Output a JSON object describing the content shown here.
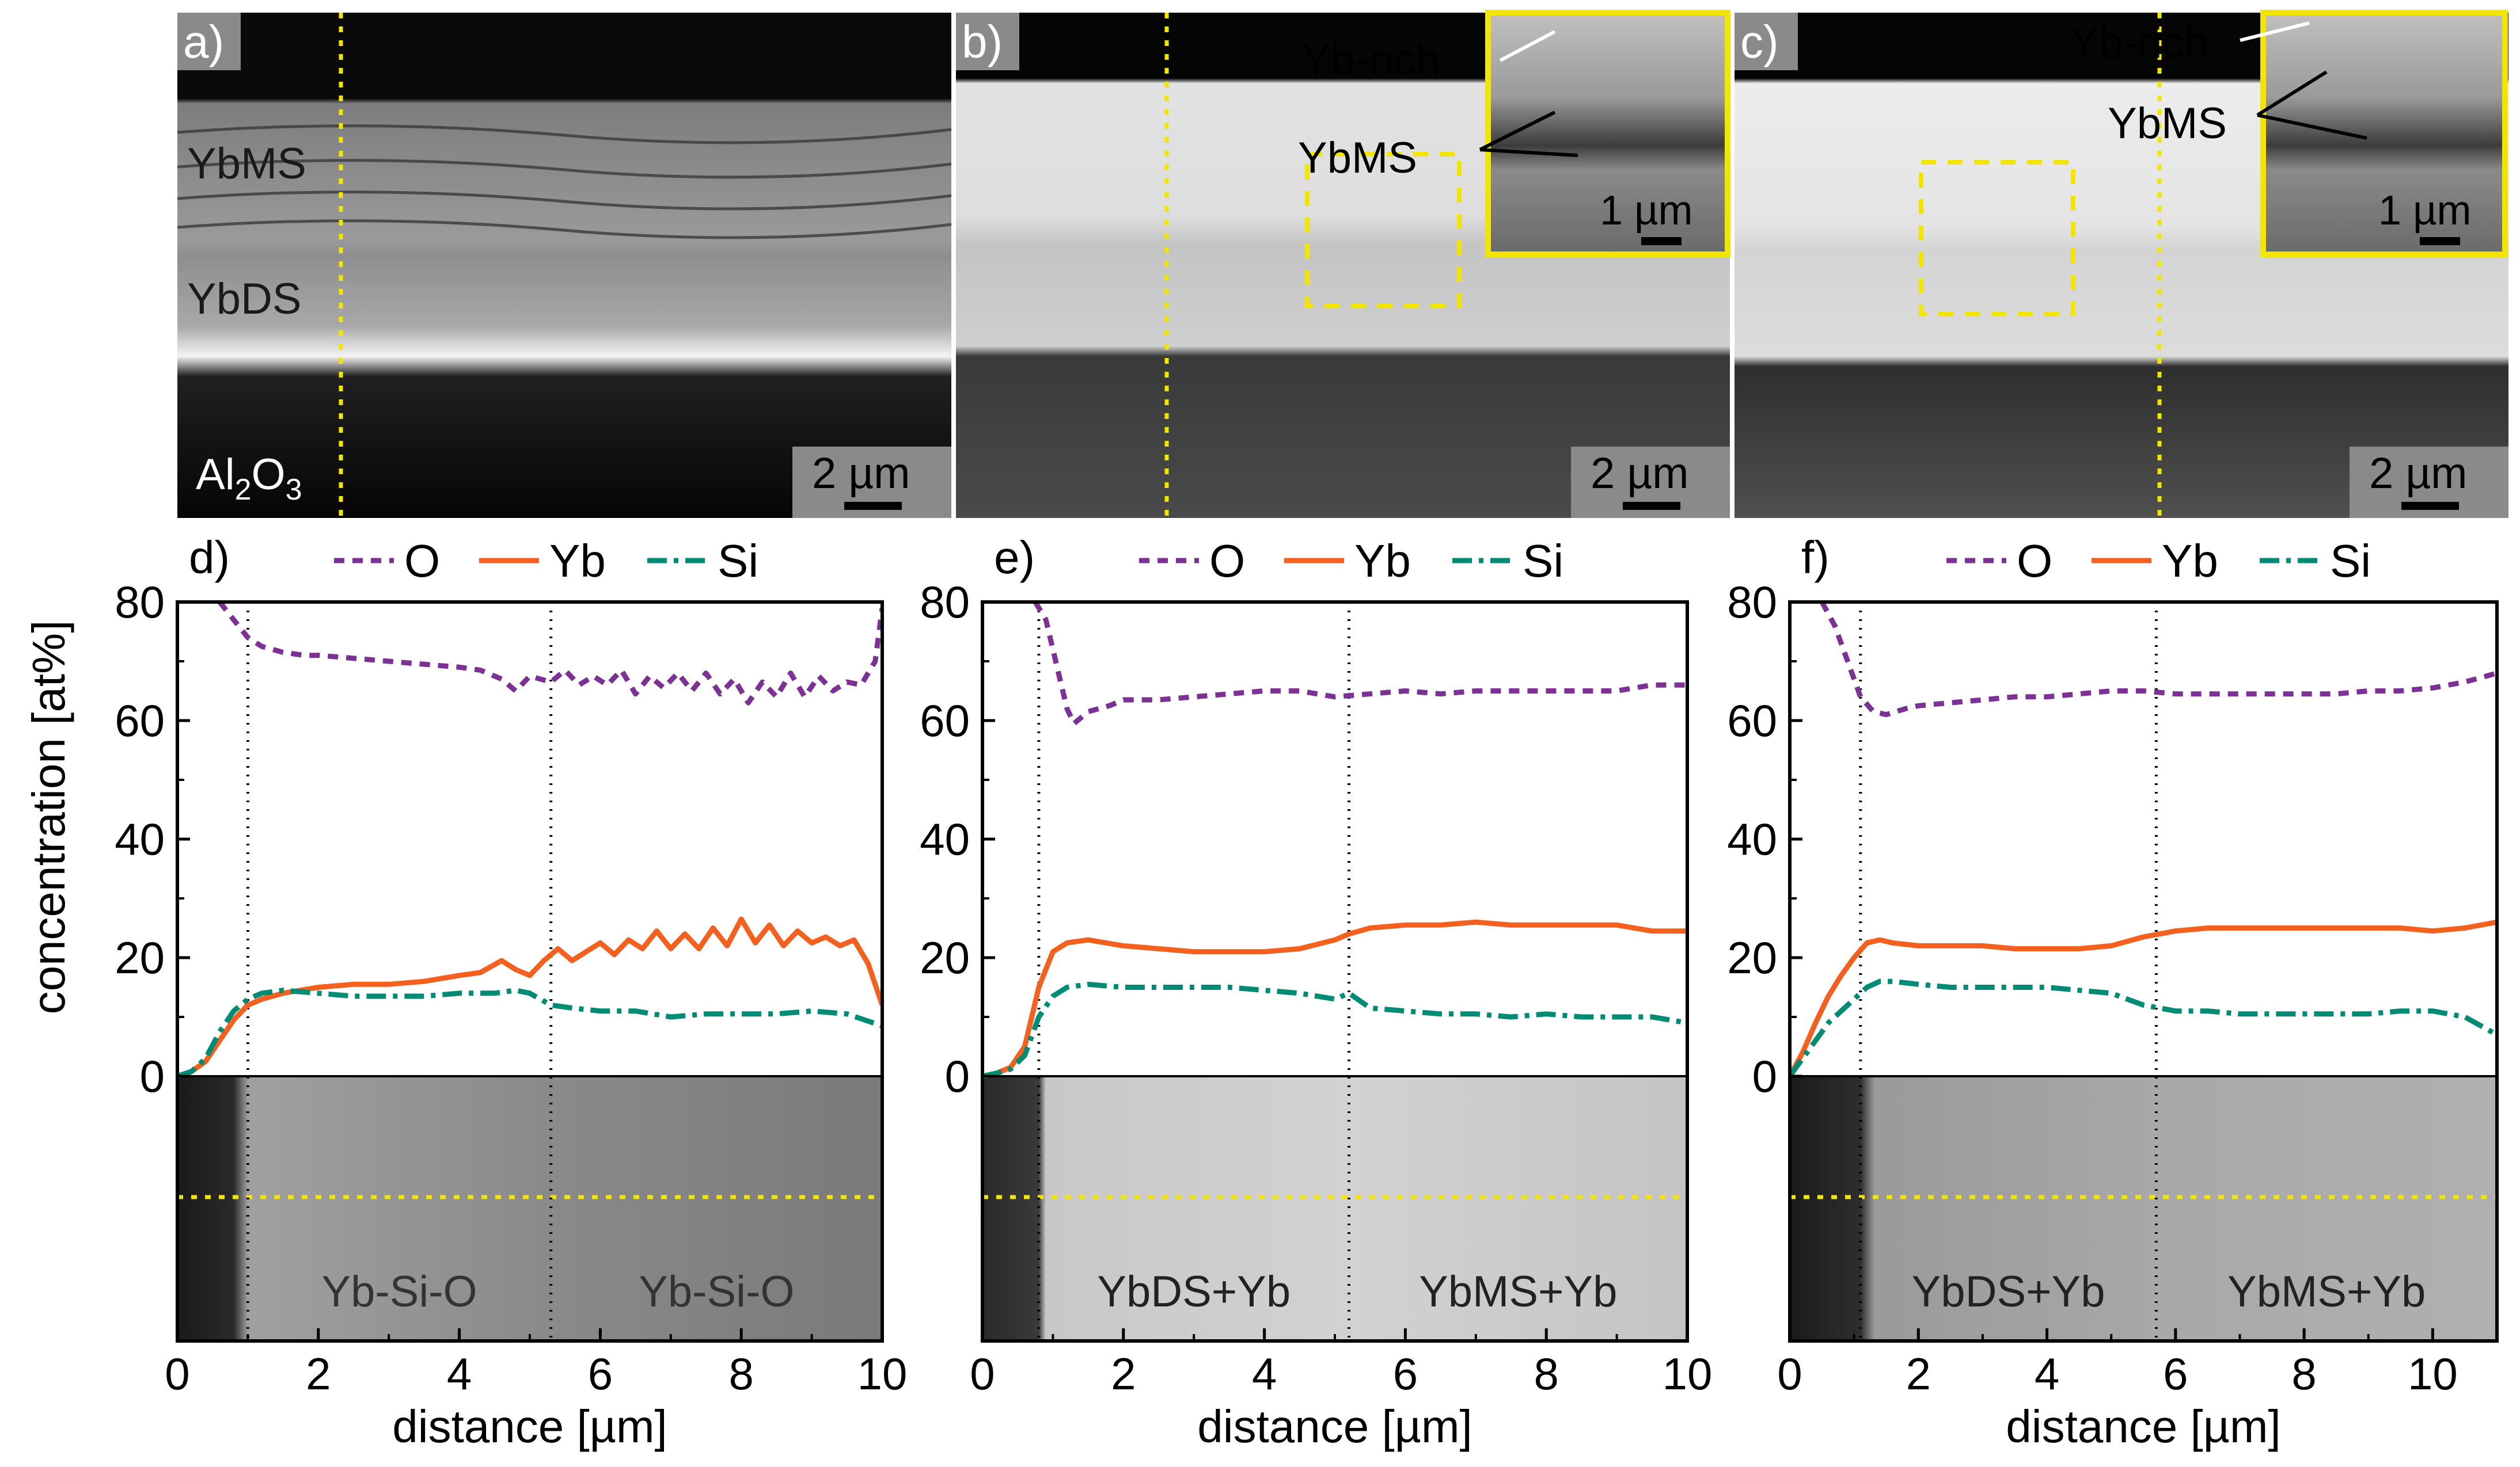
{
  "chart_data": [
    {
      "type": "line",
      "panel": "d)",
      "micrograph_labels": [
        "Yb-Si-O",
        "Yb-Si-O"
      ],
      "xlabel": "distance [µm]",
      "ylabel": "concentration [at%]",
      "xlim": [
        0,
        10
      ],
      "ylim": [
        0,
        80
      ],
      "xticks": [
        0,
        2,
        4,
        6,
        8,
        10
      ],
      "yticks": [
        0,
        20,
        40,
        60,
        80
      ],
      "boundaries": [
        1.0,
        5.3
      ],
      "series": [
        {
          "name": "O",
          "x": [
            0.6,
            0.8,
            1.0,
            1.2,
            1.5,
            1.8,
            2.0,
            2.5,
            3.0,
            3.5,
            4.0,
            4.3,
            4.6,
            4.8,
            5.0,
            5.3,
            5.5,
            5.7,
            5.9,
            6.1,
            6.3,
            6.5,
            6.7,
            6.9,
            7.1,
            7.3,
            7.5,
            7.7,
            7.9,
            8.1,
            8.3,
            8.5,
            8.7,
            8.9,
            9.1,
            9.3,
            9.5,
            9.7,
            9.9,
            10.0
          ],
          "values": [
            80,
            77,
            74,
            72.5,
            71.5,
            71,
            71,
            70.5,
            70,
            69.5,
            69,
            68.5,
            67,
            65,
            67.5,
            66.5,
            68.5,
            66,
            67.5,
            66,
            68.5,
            64.5,
            67.5,
            65.5,
            68,
            65,
            68,
            64.5,
            67,
            63,
            66.5,
            64,
            68,
            64,
            67.5,
            65,
            66.5,
            66,
            70,
            79
          ]
        },
        {
          "name": "Yb",
          "x": [
            0.0,
            0.2,
            0.4,
            0.6,
            0.8,
            1.0,
            1.2,
            1.5,
            2.0,
            2.5,
            3.0,
            3.5,
            4.0,
            4.3,
            4.6,
            4.8,
            5.0,
            5.2,
            5.4,
            5.6,
            5.8,
            6.0,
            6.2,
            6.4,
            6.6,
            6.8,
            7.0,
            7.2,
            7.4,
            7.6,
            7.8,
            8.0,
            8.2,
            8.4,
            8.6,
            8.8,
            9.0,
            9.2,
            9.4,
            9.6,
            9.8,
            10.0
          ],
          "values": [
            0,
            0.8,
            2.5,
            6,
            9.5,
            12,
            13,
            14,
            15,
            15.5,
            15.5,
            16,
            17,
            17.5,
            19.5,
            18,
            17,
            19.5,
            21.5,
            19.5,
            21,
            22.5,
            20.5,
            23,
            21.5,
            24.5,
            21.5,
            24,
            21.5,
            25,
            22,
            26.5,
            22.5,
            25.5,
            22,
            24.5,
            22.5,
            23.5,
            22,
            23,
            19,
            12
          ]
        },
        {
          "name": "Si",
          "x": [
            0.0,
            0.2,
            0.4,
            0.6,
            0.8,
            1.0,
            1.2,
            1.5,
            2.0,
            2.5,
            3.0,
            3.5,
            4.0,
            4.5,
            4.8,
            5.0,
            5.3,
            5.6,
            6.0,
            6.5,
            7.0,
            7.5,
            8.0,
            8.5,
            9.0,
            9.5,
            10.0
          ],
          "values": [
            0,
            0.8,
            3,
            7.5,
            11,
            13,
            14,
            14.5,
            14,
            13.5,
            13.5,
            13.5,
            14,
            14,
            14.5,
            14,
            12,
            11.5,
            11,
            11,
            10,
            10.5,
            10.5,
            10.5,
            11,
            10.5,
            8.5
          ]
        }
      ]
    },
    {
      "type": "line",
      "panel": "e)",
      "micrograph_labels": [
        "YbDS+Yb",
        "YbMS+Yb"
      ],
      "xlabel": "distance [µm]",
      "ylabel": "",
      "xlim": [
        0,
        10
      ],
      "ylim": [
        0,
        80
      ],
      "xticks": [
        0,
        2,
        4,
        6,
        8,
        10
      ],
      "yticks": [
        0,
        20,
        40,
        60,
        80
      ],
      "boundaries": [
        0.8,
        5.2
      ],
      "series": [
        {
          "name": "O",
          "x": [
            0.75,
            0.9,
            1.0,
            1.1,
            1.2,
            1.3,
            1.5,
            1.8,
            2.0,
            2.5,
            3.0,
            3.5,
            4.0,
            4.5,
            5.0,
            5.5,
            6.0,
            6.5,
            7.0,
            7.5,
            8.0,
            8.5,
            9.0,
            9.5,
            10.0
          ],
          "values": [
            80,
            77,
            72,
            67,
            62,
            59.5,
            61.5,
            62.5,
            63.5,
            63.5,
            64,
            64.5,
            65,
            65,
            64,
            64.5,
            65,
            64.5,
            65,
            65,
            65,
            65,
            65,
            66,
            66
          ]
        },
        {
          "name": "Yb",
          "x": [
            0.0,
            0.2,
            0.4,
            0.6,
            0.8,
            1.0,
            1.2,
            1.5,
            2.0,
            2.5,
            3.0,
            3.5,
            4.0,
            4.5,
            5.0,
            5.2,
            5.5,
            6.0,
            6.5,
            7.0,
            7.5,
            8.0,
            8.5,
            9.0,
            9.5,
            10.0
          ],
          "values": [
            0,
            0.5,
            1.5,
            5,
            15,
            21,
            22.5,
            23,
            22,
            21.5,
            21,
            21,
            21,
            21.5,
            23,
            24,
            25,
            25.5,
            25.5,
            26,
            25.5,
            25.5,
            25.5,
            25.5,
            24.5,
            24.5
          ]
        },
        {
          "name": "Si",
          "x": [
            0.0,
            0.2,
            0.4,
            0.6,
            0.8,
            1.0,
            1.2,
            1.5,
            2.0,
            2.5,
            3.0,
            3.5,
            4.0,
            4.5,
            5.0,
            5.2,
            5.5,
            6.0,
            6.5,
            7.0,
            7.5,
            8.0,
            8.5,
            9.0,
            9.5,
            10.0
          ],
          "values": [
            0,
            0.5,
            1.2,
            3.5,
            10,
            13.5,
            15,
            15.5,
            15,
            15,
            15,
            15,
            14.5,
            14,
            13,
            14,
            11.5,
            11,
            10.5,
            10.5,
            10,
            10.5,
            10,
            10,
            10,
            9
          ]
        }
      ]
    },
    {
      "type": "line",
      "panel": "f)",
      "micrograph_labels": [
        "YbDS+Yb",
        "YbMS+Yb"
      ],
      "xlabel": "distance [µm]",
      "ylabel": "",
      "xlim": [
        0,
        11
      ],
      "ylim": [
        0,
        80
      ],
      "xticks": [
        0,
        2,
        4,
        6,
        8,
        10
      ],
      "yticks": [
        0,
        20,
        40,
        60,
        80
      ],
      "boundaries": [
        1.1,
        5.7
      ],
      "series": [
        {
          "name": "O",
          "x": [
            0.5,
            0.7,
            0.9,
            1.1,
            1.3,
            1.5,
            1.8,
            2.0,
            2.5,
            3.0,
            3.5,
            4.0,
            4.5,
            5.0,
            5.5,
            6.0,
            6.5,
            7.0,
            7.5,
            8.0,
            8.5,
            9.0,
            9.5,
            10.0,
            10.5,
            11.0
          ],
          "values": [
            80,
            76,
            70,
            64,
            61.5,
            61,
            62,
            62.5,
            63,
            63.5,
            64,
            64,
            64.5,
            65,
            65,
            64.5,
            64.5,
            64.5,
            64.5,
            64.5,
            64.5,
            65,
            65,
            65.5,
            66.5,
            68
          ]
        },
        {
          "name": "Yb",
          "x": [
            0.0,
            0.2,
            0.4,
            0.6,
            0.8,
            1.0,
            1.2,
            1.4,
            1.6,
            2.0,
            2.5,
            3.0,
            3.5,
            4.0,
            4.5,
            5.0,
            5.5,
            6.0,
            6.5,
            7.0,
            7.5,
            8.0,
            8.5,
            9.0,
            9.5,
            10.0,
            10.5,
            11.0
          ],
          "values": [
            0,
            4,
            9,
            13.5,
            17,
            20,
            22.5,
            23,
            22.5,
            22,
            22,
            22,
            21.5,
            21.5,
            21.5,
            22,
            23.5,
            24.5,
            25,
            25,
            25,
            25,
            25,
            25,
            25,
            24.5,
            25,
            26
          ]
        },
        {
          "name": "Si",
          "x": [
            0.0,
            0.2,
            0.4,
            0.6,
            0.8,
            1.0,
            1.2,
            1.4,
            1.6,
            2.0,
            2.5,
            3.0,
            3.5,
            4.0,
            4.5,
            5.0,
            5.5,
            6.0,
            6.5,
            7.0,
            7.5,
            8.0,
            8.5,
            9.0,
            9.5,
            10.0,
            10.5,
            11.0
          ],
          "values": [
            0,
            3,
            6,
            9,
            11,
            13,
            15,
            16,
            16,
            15.5,
            15,
            15,
            15,
            15,
            14.5,
            14,
            12,
            11,
            11,
            10.5,
            10.5,
            10.5,
            10.5,
            10.5,
            11,
            11,
            10,
            7
          ]
        }
      ]
    }
  ],
  "legend": [
    {
      "name": "O",
      "color": "#7b3294",
      "dash": "dash"
    },
    {
      "name": "Yb",
      "color": "#f4601e",
      "dash": "solid"
    },
    {
      "name": "Si",
      "color": "#008b74",
      "dash": "dashdot"
    }
  ],
  "sem_panels": [
    {
      "label": "a)",
      "layer_labels": [
        "YbMS",
        "YbDS"
      ],
      "substrate_label": {
        "base": "Al",
        "sub1": "2",
        "mid": "O",
        "sub2": "3"
      },
      "scale_bar": "2 µm"
    },
    {
      "label": "b)",
      "annotations": [
        "Yb-rich",
        "YbMS"
      ],
      "scale_bar": "2 µm",
      "inset_scale_bar": "1 µm"
    },
    {
      "label": "c)",
      "annotations": [
        "Yb-rich",
        "YbMS"
      ],
      "scale_bar": "2 µm",
      "inset_scale_bar": "1 µm"
    }
  ],
  "colors": {
    "O": "#7b3294",
    "Yb": "#f4601e",
    "Si": "#008b74",
    "highlight": "#f2e600",
    "axis": "#000000"
  }
}
